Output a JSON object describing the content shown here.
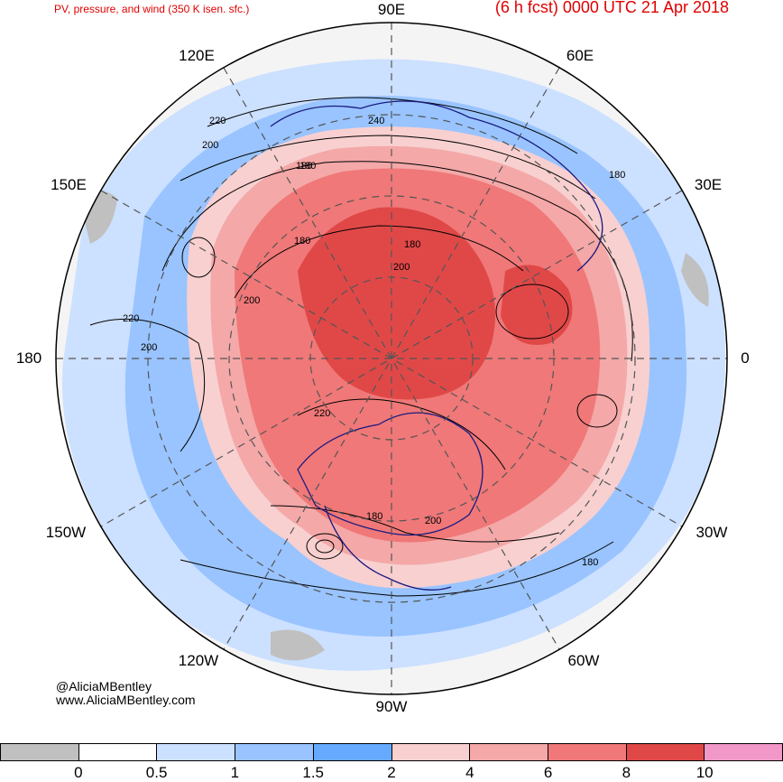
{
  "header": {
    "left_title": "PV, pressure, and wind (350 K isen. sfc.)",
    "right_title": "(6 h fcst) 0000 UTC 21 Apr 2018"
  },
  "longitude_labels": [
    "90E",
    "60E",
    "30E",
    "0",
    "30W",
    "60W",
    "90W",
    "120W",
    "150W",
    "180",
    "150E",
    "120E"
  ],
  "contour_labels": [
    "240",
    "220",
    "200",
    "180",
    "180",
    "200",
    "180",
    "200",
    "180",
    "220",
    "200",
    "220",
    "180",
    "200",
    "180",
    "180"
  ],
  "credit": {
    "handle": "@AliciaMBentley",
    "website": "www.AliciaMBentley.com"
  },
  "colorbar": {
    "colors": [
      "#c0c0c0",
      "#ffffff",
      "#cce0ff",
      "#99c4ff",
      "#66aaff",
      "#f8d0d0",
      "#f4a8a8",
      "#f07878",
      "#e04848",
      "#f298c8"
    ],
    "labels": [
      "0",
      "0.5",
      "1",
      "1.5",
      "2",
      "4",
      "6",
      "8",
      "10"
    ]
  }
}
